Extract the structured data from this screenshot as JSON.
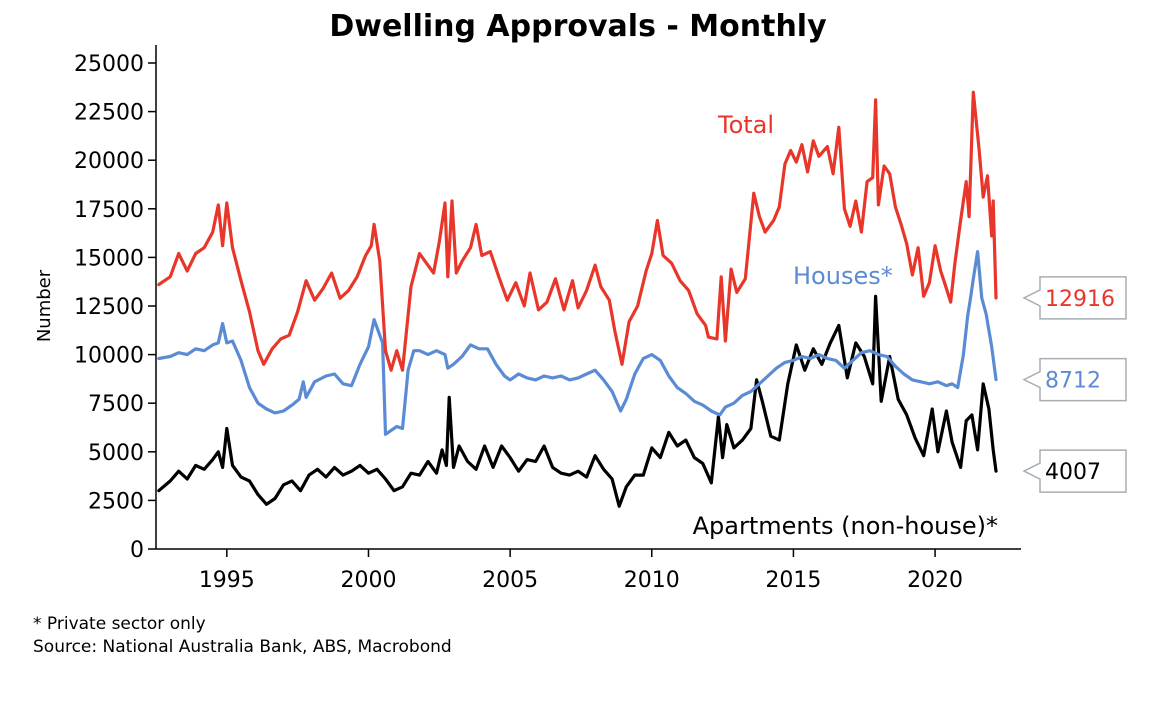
{
  "chart_data": {
    "type": "line",
    "title": "Dwelling Approvals - Monthly",
    "xlabel": "",
    "ylabel": "Number",
    "xlim": [
      1992.5,
      2022.9
    ],
    "ylim": [
      0,
      25000
    ],
    "yticks": [
      0,
      2500,
      5000,
      7500,
      10000,
      12500,
      15000,
      17500,
      20000,
      22500,
      25000
    ],
    "yticklabels": [
      "0",
      "2500",
      "5000",
      "7500",
      "10000",
      "12500",
      "15000",
      "17500",
      "20000",
      "22500",
      "25000"
    ],
    "xticks": [
      1995,
      2000,
      2005,
      2010,
      2015,
      2020
    ],
    "xticklabels": [
      "1995",
      "2000",
      "2005",
      "2010",
      "2015",
      "2020"
    ],
    "grid": false,
    "legend": "inline labels",
    "series": [
      {
        "name": "Total",
        "label": "Total",
        "color": "#e8372a",
        "last_value_label": "12916",
        "x": [
          1992.6,
          1993.0,
          1993.3,
          1993.6,
          1993.9,
          1994.2,
          1994.5,
          1994.7,
          1994.85,
          1995.0,
          1995.2,
          1995.5,
          1995.8,
          1996.1,
          1996.3,
          1996.6,
          1996.9,
          1997.2,
          1997.5,
          1997.8,
          1998.1,
          1998.4,
          1998.7,
          1999.0,
          1999.3,
          1999.6,
          1999.9,
          2000.1,
          2000.2,
          2000.4,
          2000.6,
          2000.8,
          2001.0,
          2001.2,
          2001.5,
          2001.8,
          2002.0,
          2002.3,
          2002.5,
          2002.7,
          2002.8,
          2002.95,
          2003.1,
          2003.3,
          2003.6,
          2003.8,
          2004.0,
          2004.3,
          2004.6,
          2004.9,
          2005.2,
          2005.5,
          2005.7,
          2006.0,
          2006.3,
          2006.6,
          2006.9,
          2007.2,
          2007.4,
          2007.7,
          2008.0,
          2008.2,
          2008.5,
          2008.7,
          2008.95,
          2009.2,
          2009.5,
          2009.8,
          2010.0,
          2010.2,
          2010.4,
          2010.7,
          2011.0,
          2011.3,
          2011.6,
          2011.9,
          2012.0,
          2012.3,
          2012.45,
          2012.6,
          2012.8,
          2013.0,
          2013.3,
          2013.6,
          2013.8,
          2014.0,
          2014.3,
          2014.5,
          2014.7,
          2014.9,
          2015.1,
          2015.3,
          2015.5,
          2015.7,
          2015.9,
          2016.2,
          2016.4,
          2016.6,
          2016.8,
          2017.0,
          2017.2,
          2017.4,
          2017.6,
          2017.8,
          2017.9,
          2018.0,
          2018.2,
          2018.4,
          2018.6,
          2018.8,
          2019.0,
          2019.2,
          2019.4,
          2019.6,
          2019.8,
          2020.0,
          2020.2,
          2020.4,
          2020.55,
          2020.7,
          2020.9,
          2021.1,
          2021.2,
          2021.35,
          2021.55,
          2021.7,
          2021.85,
          2022.0,
          2022.05,
          2022.15
        ],
        "y": [
          13600,
          14000,
          15200,
          14300,
          15200,
          15500,
          16300,
          17700,
          15600,
          17800,
          15500,
          13800,
          12200,
          10200,
          9500,
          10300,
          10800,
          11000,
          12200,
          13800,
          12800,
          13400,
          14200,
          12900,
          13300,
          14000,
          15100,
          15600,
          16700,
          14800,
          10200,
          9200,
          10200,
          9200,
          13500,
          15200,
          14800,
          14200,
          15800,
          17800,
          14000,
          17900,
          14200,
          14800,
          15500,
          16700,
          15100,
          15300,
          14000,
          12800,
          13700,
          12500,
          14200,
          12300,
          12700,
          13900,
          12300,
          13800,
          12400,
          13300,
          14600,
          13500,
          12800,
          11200,
          9500,
          11700,
          12500,
          14300,
          15200,
          16900,
          15100,
          14700,
          13800,
          13300,
          12100,
          11500,
          10900,
          10800,
          14000,
          10700,
          14400,
          13200,
          13900,
          18300,
          17100,
          16300,
          16900,
          17600,
          19800,
          20500,
          19900,
          20800,
          19400,
          21000,
          20200,
          20700,
          19300,
          21700,
          17500,
          16600,
          17900,
          16300,
          18900,
          19100,
          23100,
          17700,
          19700,
          19300,
          17600,
          16700,
          15700,
          14100,
          15500,
          13000,
          13700,
          15600,
          14300,
          13400,
          12700,
          14700,
          16900,
          18900,
          17100,
          23500,
          20600,
          18100,
          19200,
          16100,
          17900,
          12916
        ]
      },
      {
        "name": "Houses*",
        "label": "Houses*",
        "color": "#5b8bd4",
        "last_value_label": "8712",
        "x": [
          1992.6,
          1993.0,
          1993.3,
          1993.6,
          1993.9,
          1994.2,
          1994.5,
          1994.7,
          1994.85,
          1995.0,
          1995.2,
          1995.5,
          1995.8,
          1996.1,
          1996.4,
          1996.7,
          1997.0,
          1997.3,
          1997.55,
          1997.7,
          1997.8,
          1998.1,
          1998.5,
          1998.8,
          1999.1,
          1999.4,
          1999.7,
          2000.0,
          2000.2,
          2000.5,
          2000.6,
          2000.8,
          2001.0,
          2001.2,
          2001.4,
          2001.6,
          2001.8,
          2002.1,
          2002.4,
          2002.7,
          2002.8,
          2003.0,
          2003.3,
          2003.6,
          2003.9,
          2004.2,
          2004.5,
          2004.8,
          2005.0,
          2005.3,
          2005.6,
          2005.9,
          2006.2,
          2006.5,
          2006.8,
          2007.1,
          2007.4,
          2007.7,
          2008.0,
          2008.3,
          2008.6,
          2008.9,
          2009.1,
          2009.4,
          2009.7,
          2010.0,
          2010.3,
          2010.6,
          2010.9,
          2011.2,
          2011.5,
          2011.8,
          2012.1,
          2012.4,
          2012.6,
          2012.9,
          2013.2,
          2013.5,
          2013.8,
          2014.1,
          2014.4,
          2014.7,
          2015.0,
          2015.3,
          2015.6,
          2015.9,
          2016.2,
          2016.5,
          2016.8,
          2017.1,
          2017.4,
          2017.7,
          2018.0,
          2018.3,
          2018.6,
          2018.9,
          2019.2,
          2019.5,
          2019.8,
          2020.1,
          2020.4,
          2020.6,
          2020.8,
          2021.0,
          2021.15,
          2021.25,
          2021.35,
          2021.5,
          2021.65,
          2021.8,
          2022.0,
          2022.15
        ],
        "y": [
          9800,
          9900,
          10100,
          10000,
          10300,
          10200,
          10500,
          10600,
          11600,
          10600,
          10700,
          9700,
          8300,
          7500,
          7200,
          7000,
          7100,
          7400,
          7700,
          8600,
          7800,
          8600,
          8900,
          9000,
          8500,
          8400,
          9500,
          10400,
          11800,
          10600,
          5900,
          6100,
          6300,
          6200,
          9200,
          10200,
          10200,
          10000,
          10200,
          10000,
          9300,
          9500,
          9900,
          10500,
          10300,
          10300,
          9500,
          8900,
          8700,
          9000,
          8800,
          8700,
          8900,
          8800,
          8900,
          8700,
          8800,
          9000,
          9200,
          8700,
          8100,
          7100,
          7700,
          9000,
          9800,
          10000,
          9700,
          8900,
          8300,
          8000,
          7600,
          7400,
          7100,
          6900,
          7300,
          7500,
          7900,
          8100,
          8500,
          8900,
          9300,
          9600,
          9700,
          9900,
          9800,
          10000,
          9800,
          9700,
          9300,
          9700,
          10100,
          10200,
          10000,
          9900,
          9400,
          9000,
          8700,
          8600,
          8500,
          8600,
          8400,
          8500,
          8300,
          10000,
          12000,
          12900,
          13900,
          15300,
          12900,
          12100,
          10400,
          8712
        ]
      },
      {
        "name": "Apartments (non-house)*",
        "label": "Apartments (non-house)*",
        "color": "#000000",
        "last_value_label": "4007",
        "x": [
          1992.6,
          1993.0,
          1993.3,
          1993.6,
          1993.9,
          1994.2,
          1994.5,
          1994.7,
          1994.85,
          1995.0,
          1995.2,
          1995.5,
          1995.8,
          1996.1,
          1996.4,
          1996.7,
          1997.0,
          1997.3,
          1997.6,
          1997.9,
          1998.2,
          1998.5,
          1998.8,
          1999.1,
          1999.4,
          1999.7,
          2000.0,
          2000.3,
          2000.6,
          2000.9,
          2001.2,
          2001.5,
          2001.8,
          2002.1,
          2002.4,
          2002.6,
          2002.75,
          2002.85,
          2003.0,
          2003.2,
          2003.5,
          2003.8,
          2004.1,
          2004.4,
          2004.7,
          2005.0,
          2005.3,
          2005.6,
          2005.9,
          2006.2,
          2006.5,
          2006.8,
          2007.1,
          2007.4,
          2007.7,
          2008.0,
          2008.3,
          2008.6,
          2008.85,
          2009.1,
          2009.4,
          2009.7,
          2010.0,
          2010.3,
          2010.6,
          2010.9,
          2011.2,
          2011.5,
          2011.8,
          2012.1,
          2012.35,
          2012.5,
          2012.65,
          2012.9,
          2013.2,
          2013.5,
          2013.7,
          2013.9,
          2014.2,
          2014.5,
          2014.8,
          2015.1,
          2015.4,
          2015.7,
          2016.0,
          2016.3,
          2016.6,
          2016.9,
          2017.2,
          2017.5,
          2017.8,
          2017.9,
          2018.1,
          2018.4,
          2018.7,
          2019.0,
          2019.3,
          2019.6,
          2019.9,
          2020.1,
          2020.4,
          2020.6,
          2020.9,
          2021.1,
          2021.3,
          2021.5,
          2021.7,
          2021.9,
          2022.05,
          2022.15
        ],
        "y": [
          3000,
          3500,
          4000,
          3600,
          4300,
          4100,
          4600,
          5000,
          4200,
          6200,
          4300,
          3700,
          3500,
          2800,
          2300,
          2600,
          3300,
          3500,
          3000,
          3800,
          4100,
          3700,
          4200,
          3800,
          4000,
          4300,
          3900,
          4100,
          3600,
          3000,
          3200,
          3900,
          3800,
          4500,
          3900,
          5100,
          4300,
          7800,
          4200,
          5300,
          4500,
          4100,
          5300,
          4200,
          5300,
          4700,
          4000,
          4600,
          4500,
          5300,
          4200,
          3900,
          3800,
          4000,
          3700,
          4800,
          4100,
          3600,
          2200,
          3200,
          3800,
          3800,
          5200,
          4700,
          6000,
          5300,
          5600,
          4700,
          4400,
          3400,
          6800,
          4700,
          6400,
          5200,
          5600,
          6200,
          8700,
          7600,
          5800,
          5600,
          8500,
          10500,
          9200,
          10300,
          9500,
          10600,
          11500,
          8800,
          10600,
          9900,
          8500,
          13000,
          7600,
          9900,
          7700,
          6900,
          5700,
          4800,
          7200,
          5000,
          7100,
          5500,
          4200,
          6600,
          6900,
          5100,
          8500,
          7200,
          5100,
          4007
        ]
      }
    ],
    "annotations": [
      {
        "text": "Total",
        "series": "Total"
      },
      {
        "text": "Houses*",
        "series": "Houses*"
      },
      {
        "text": "Apartments (non-house)*",
        "series": "Apartments (non-house)*"
      }
    ],
    "footnotes": [
      "* Private sector only",
      "Source: National Australia Bank, ABS, Macrobond"
    ]
  },
  "callout_border_color": "#a8aeb3"
}
